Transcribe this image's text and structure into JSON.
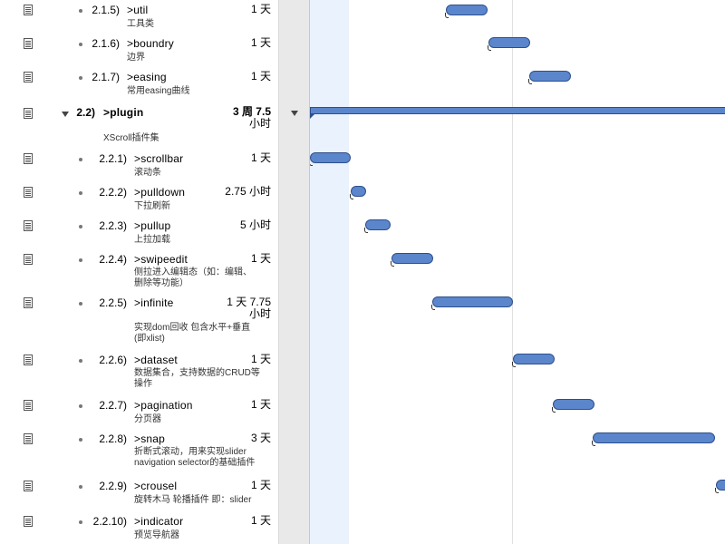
{
  "rows": [
    {
      "num": "2.1.5)",
      "title": ">util",
      "duration": "1 天",
      "note": "工具类"
    },
    {
      "num": "2.1.6)",
      "title": ">boundry",
      "duration": "1 天",
      "note": "边界"
    },
    {
      "num": "2.1.7)",
      "title": ">easing",
      "duration": "1 天",
      "note": "常用easing曲线"
    },
    {
      "num": "2.2)",
      "title": ">plugin",
      "duration": "3 周 7.5 小时",
      "duration_line1": "3 周 7.5",
      "duration_line2": "小时",
      "note": "XScroll插件集"
    },
    {
      "num": "2.2.1)",
      "title": ">scrollbar",
      "duration": "1 天",
      "note": "滚动条"
    },
    {
      "num": "2.2.2)",
      "title": ">pulldown",
      "duration": "2.75 小时",
      "note": "下拉刷新"
    },
    {
      "num": "2.2.3)",
      "title": ">pullup",
      "duration": "5 小时",
      "note": "上拉加载"
    },
    {
      "num": "2.2.4)",
      "title": ">swipeedit",
      "duration": "1 天",
      "note_line1": "侧拉进入编辑态（如：编辑、",
      "note_line2": "删除等功能）"
    },
    {
      "num": "2.2.5)",
      "title": ">infinite",
      "duration_line1": "1 天 7.75",
      "duration_line2": "小时",
      "note_line1": "实现dom回收 包含水平+垂直",
      "note_line2": "(即xlist)"
    },
    {
      "num": "2.2.6)",
      "title": ">dataset",
      "duration": "1 天",
      "note_line1": "数据集合，支持数据的CRUD等",
      "note_line2": "操作"
    },
    {
      "num": "2.2.7)",
      "title": ">pagination",
      "duration": "1 天",
      "note": "分页器"
    },
    {
      "num": "2.2.8)",
      "title": ">snap",
      "duration": "3 天",
      "note_line1": "折断式滚动，用来实现slider",
      "note_line2": "navigation selector的基础插件"
    },
    {
      "num": "2.2.9)",
      "title": ">crousel",
      "duration": "1 天",
      "note": "旋转木马 轮播插件 即：slider"
    },
    {
      "num": "2.2.10)",
      "title": ">indicator",
      "duration": "1 天",
      "note": "预览导航器"
    }
  ],
  "colors": {
    "bar": "#5b86cc",
    "bar_border": "#2e4f8c",
    "today": "#eaf2fd"
  },
  "icons": {
    "note": "note-icon",
    "bullet": "bullet-icon",
    "disclosure": "disclosure-triangle-icon"
  }
}
